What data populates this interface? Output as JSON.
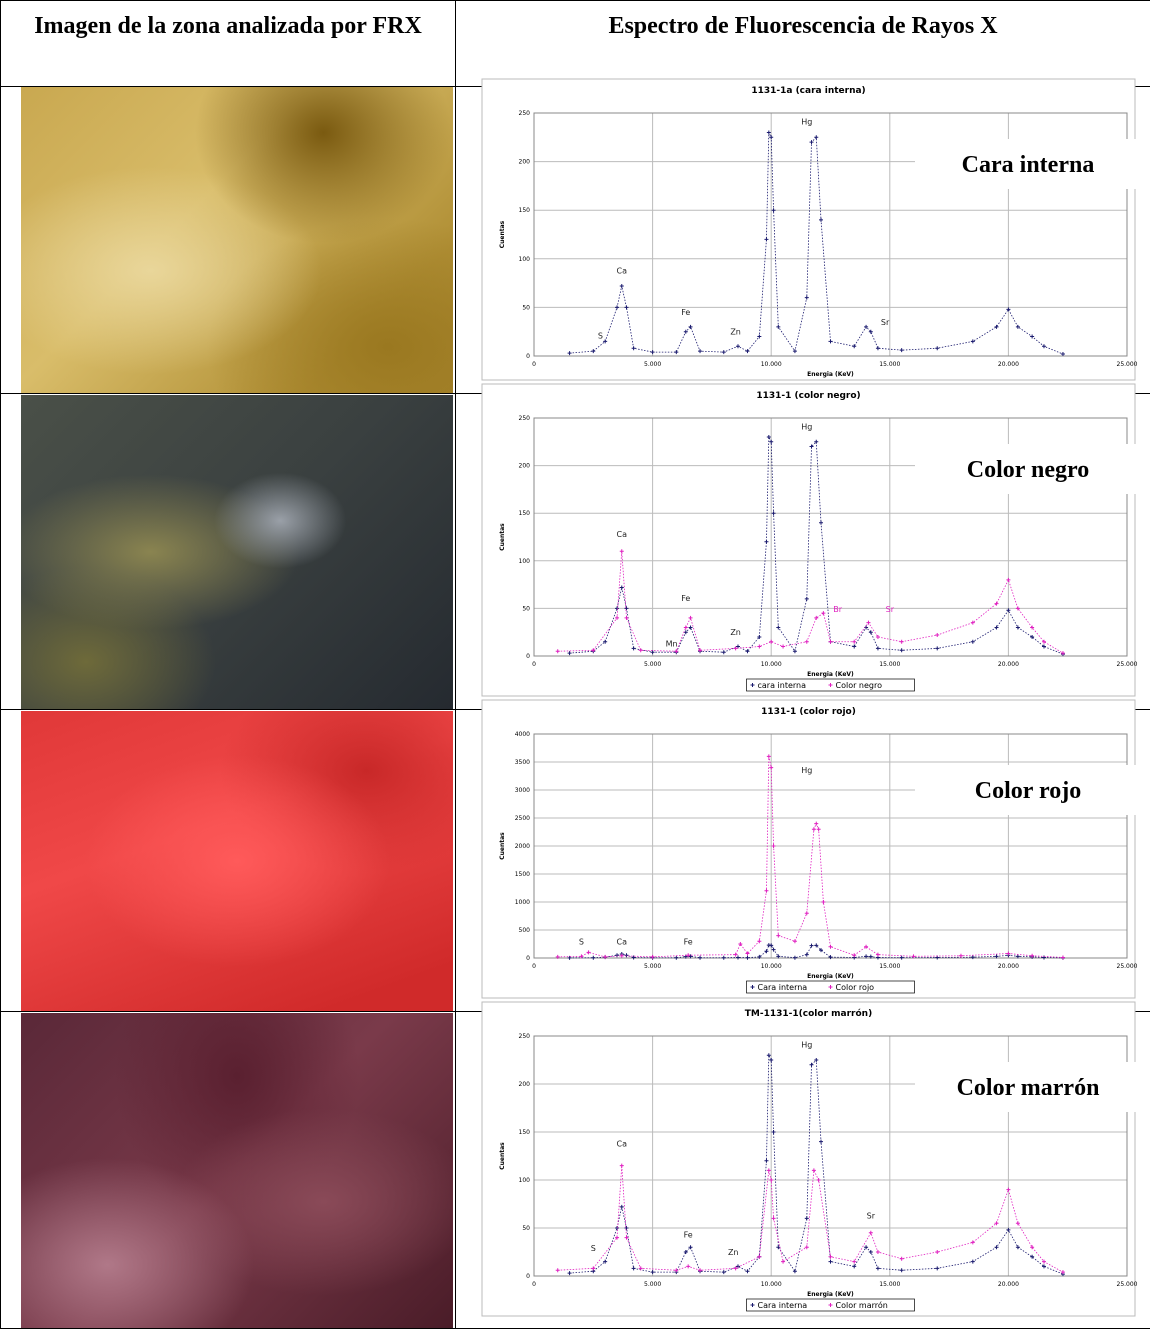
{
  "header": {
    "col1": "Imagen de la zona analizada por FRX",
    "col2": "Espectro de Fluorescencia de Rayos X"
  },
  "rows": [
    {
      "label": "Cara interna",
      "chart": {
        "type": "scatter",
        "title": "1131-1a (cara interna)",
        "x_label": "Energia (KeV)",
        "y_label": "Cuentas",
        "grid": true,
        "legend": false,
        "xlim": [
          0,
          25000
        ],
        "xticks": [
          0,
          {
            "value": 5000,
            "label": "5.000"
          },
          {
            "value": 10000,
            "label": "10.000"
          },
          {
            "value": 15000,
            "label": "15.000"
          },
          {
            "value": 20000,
            "label": "20.000"
          },
          {
            "value": 25000,
            "label": "25.000"
          }
        ],
        "ylim": [
          0,
          250
        ],
        "yticks": [
          0,
          50,
          100,
          150,
          200,
          250
        ],
        "series": [
          {
            "name": "Cara interna",
            "color": "#1a1a6e",
            "x": [
              1500,
              2500,
              3000,
              3500,
              3700,
              3900,
              4200,
              5000,
              6000,
              6400,
              6600,
              7000,
              8000,
              8600,
              9000,
              9500,
              9800,
              9900,
              10000,
              10100,
              10300,
              11000,
              11500,
              11700,
              11900,
              12100,
              12500,
              13500,
              14000,
              14200,
              14500,
              15500,
              17000,
              18500,
              19500,
              20000,
              20400,
              21000,
              21500,
              22300
            ],
            "values": [
              3,
              5,
              15,
              50,
              72,
              50,
              8,
              4,
              4,
              25,
              30,
              5,
              4,
              10,
              5,
              20,
              120,
              230,
              225,
              150,
              30,
              5,
              60,
              220,
              225,
              140,
              15,
              10,
              30,
              25,
              8,
              6,
              8,
              15,
              30,
              48,
              30,
              20,
              10,
              2
            ]
          }
        ],
        "annotations": [
          {
            "text": "S",
            "x": 2800,
            "y": 18,
            "color": "#222"
          },
          {
            "text": "Ca",
            "x": 3700,
            "y": 85,
            "color": "#222"
          },
          {
            "text": "Fe",
            "x": 6400,
            "y": 42,
            "color": "#222"
          },
          {
            "text": "Zn",
            "x": 8500,
            "y": 22,
            "color": "#222"
          },
          {
            "text": "Hg",
            "x": 11500,
            "y": 238,
            "color": "#222"
          },
          {
            "text": "Sr",
            "x": 14800,
            "y": 32,
            "color": "#222"
          }
        ]
      }
    },
    {
      "label": "Color negro",
      "chart": {
        "type": "scatter",
        "title": "1131-1 (color negro)",
        "x_label": "Energia (KeV)",
        "y_label": "Cuentas",
        "grid": true,
        "legend": true,
        "xlim": [
          0,
          25000
        ],
        "xticks": [
          0,
          {
            "value": 5000,
            "label": "5.000"
          },
          {
            "value": 10000,
            "label": "10.000"
          },
          {
            "value": 15000,
            "label": "15.000"
          },
          {
            "value": 20000,
            "label": "20.000"
          },
          {
            "value": 25000,
            "label": "25.000"
          }
        ],
        "ylim": [
          0,
          250
        ],
        "yticks": [
          0,
          50,
          100,
          150,
          200,
          250
        ],
        "series": [
          {
            "name": "cara interna",
            "color": "#1a1a6e",
            "x": [
              1500,
              2500,
              3000,
              3500,
              3700,
              3900,
              4200,
              5000,
              6000,
              6400,
              6600,
              7000,
              8000,
              8600,
              9000,
              9500,
              9800,
              9900,
              10000,
              10100,
              10300,
              11000,
              11500,
              11700,
              11900,
              12100,
              12500,
              13500,
              14000,
              14200,
              14500,
              15500,
              17000,
              18500,
              19500,
              20000,
              20400,
              21000,
              21500,
              22300
            ],
            "values": [
              3,
              5,
              15,
              50,
              72,
              50,
              8,
              4,
              4,
              25,
              30,
              5,
              4,
              10,
              5,
              20,
              120,
              230,
              225,
              150,
              30,
              5,
              60,
              220,
              225,
              140,
              15,
              10,
              30,
              25,
              8,
              6,
              8,
              15,
              30,
              48,
              30,
              20,
              10,
              2
            ]
          },
          {
            "name": "Color negro",
            "color": "#e020c0",
            "x": [
              1000,
              2500,
              3500,
              3700,
              3900,
              4500,
              6000,
              6400,
              6600,
              7000,
              8500,
              9500,
              10000,
              10500,
              11500,
              11900,
              12200,
              12500,
              13500,
              14100,
              14500,
              15500,
              17000,
              18500,
              19500,
              20000,
              20400,
              21000,
              21500,
              22300
            ],
            "values": [
              5,
              6,
              40,
              110,
              40,
              6,
              5,
              30,
              40,
              6,
              8,
              10,
              15,
              10,
              15,
              40,
              45,
              15,
              15,
              35,
              20,
              15,
              22,
              35,
              55,
              80,
              50,
              30,
              15,
              3
            ]
          }
        ],
        "annotations": [
          {
            "text": "Ca",
            "x": 3700,
            "y": 125,
            "color": "#222"
          },
          {
            "text": "Fe",
            "x": 6400,
            "y": 58,
            "color": "#222"
          },
          {
            "text": "Mn",
            "x": 5800,
            "y": 10,
            "color": "#222"
          },
          {
            "text": "Zn",
            "x": 8500,
            "y": 22,
            "color": "#222"
          },
          {
            "text": "Hg",
            "x": 11500,
            "y": 238,
            "color": "#222"
          },
          {
            "text": "Br",
            "x": 12800,
            "y": 46,
            "color": "#e020c0"
          },
          {
            "text": "Sr",
            "x": 15000,
            "y": 46,
            "color": "#e020c0"
          }
        ]
      }
    },
    {
      "label": "Color rojo",
      "chart": {
        "type": "scatter",
        "title": "1131-1 (color rojo)",
        "x_label": "Energia (KeV)",
        "y_label": "Cuentas",
        "grid": true,
        "legend": true,
        "xlim": [
          0,
          25000
        ],
        "xticks": [
          0,
          {
            "value": 5000,
            "label": "5.000"
          },
          {
            "value": 10000,
            "label": "10.000"
          },
          {
            "value": 15000,
            "label": "15.000"
          },
          {
            "value": 20000,
            "label": "20.000"
          },
          {
            "value": 25000,
            "label": "25.000"
          }
        ],
        "ylim": [
          0,
          4000
        ],
        "yticks": [
          0,
          500,
          1000,
          1500,
          2000,
          2500,
          3000,
          3500,
          4000
        ],
        "series": [
          {
            "name": "Cara interna",
            "color": "#1a1a6e",
            "x": [
              1500,
              2500,
              3000,
              3500,
              3700,
              3900,
              4200,
              5000,
              6000,
              6400,
              6600,
              7000,
              8000,
              8600,
              9000,
              9500,
              9800,
              9900,
              10000,
              10100,
              10300,
              11000,
              11500,
              11700,
              11900,
              12100,
              12500,
              13500,
              14000,
              14200,
              14500,
              15500,
              17000,
              18500,
              19500,
              20000,
              20400,
              21000,
              21500,
              22300
            ],
            "values": [
              3,
              5,
              15,
              50,
              72,
              50,
              8,
              4,
              4,
              25,
              30,
              5,
              4,
              10,
              5,
              20,
              120,
              230,
              225,
              150,
              30,
              5,
              60,
              220,
              225,
              140,
              15,
              10,
              30,
              25,
              8,
              6,
              8,
              15,
              30,
              48,
              30,
              20,
              10,
              2
            ]
          },
          {
            "name": "Color rojo",
            "color": "#e020c0",
            "x": [
              1000,
              2000,
              2300,
              3000,
              3700,
              5000,
              6500,
              8500,
              8700,
              9000,
              9500,
              9800,
              9900,
              10000,
              10100,
              10300,
              11000,
              11500,
              11800,
              11900,
              12000,
              12200,
              12500,
              13500,
              14000,
              14500,
              16000,
              18000,
              20000,
              21000,
              22300
            ],
            "values": [
              20,
              30,
              100,
              20,
              40,
              20,
              50,
              60,
              250,
              80,
              300,
              1200,
              3600,
              3400,
              2000,
              400,
              300,
              800,
              2300,
              2400,
              2300,
              1000,
              200,
              50,
              200,
              60,
              30,
              40,
              80,
              40,
              10
            ]
          }
        ],
        "annotations": [
          {
            "text": "S",
            "x": 2000,
            "y": 240,
            "color": "#222"
          },
          {
            "text": "Ca",
            "x": 3700,
            "y": 240,
            "color": "#222"
          },
          {
            "text": "Fe",
            "x": 6500,
            "y": 240,
            "color": "#222"
          },
          {
            "text": "Hg",
            "x": 11500,
            "y": 3300,
            "color": "#222"
          }
        ]
      }
    },
    {
      "label": "Color marrón",
      "chart": {
        "type": "scatter",
        "title": "TM-1131-1(color marrón)",
        "x_label": "Energia (KeV)",
        "y_label": "Cuentas",
        "grid": true,
        "legend": true,
        "xlim": [
          0,
          25000
        ],
        "xticks": [
          0,
          {
            "value": 5000,
            "label": "5.000"
          },
          {
            "value": 10000,
            "label": "10.000"
          },
          {
            "value": 15000,
            "label": "15.000"
          },
          {
            "value": 20000,
            "label": "20.000"
          },
          {
            "value": 25000,
            "label": "25.000"
          }
        ],
        "ylim": [
          0,
          250
        ],
        "yticks": [
          0,
          50,
          100,
          150,
          200,
          250
        ],
        "series": [
          {
            "name": "Cara interna",
            "color": "#1a1a6e",
            "x": [
              1500,
              2500,
              3000,
              3500,
              3700,
              3900,
              4200,
              5000,
              6000,
              6400,
              6600,
              7000,
              8000,
              8600,
              9000,
              9500,
              9800,
              9900,
              10000,
              10100,
              10300,
              11000,
              11500,
              11700,
              11900,
              12100,
              12500,
              13500,
              14000,
              14200,
              14500,
              15500,
              17000,
              18500,
              19500,
              20000,
              20400,
              21000,
              21500,
              22300
            ],
            "values": [
              3,
              5,
              15,
              50,
              72,
              50,
              8,
              4,
              4,
              25,
              30,
              5,
              4,
              10,
              5,
              20,
              120,
              230,
              225,
              150,
              30,
              5,
              60,
              220,
              225,
              140,
              15,
              10,
              30,
              25,
              8,
              6,
              8,
              15,
              30,
              48,
              30,
              20,
              10,
              2
            ]
          },
          {
            "name": "Color marrón",
            "color": "#e020c0",
            "x": [
              1000,
              2500,
              3500,
              3700,
              3900,
              4500,
              6000,
              6500,
              7000,
              8500,
              9500,
              9900,
              10000,
              10100,
              10500,
              11500,
              11800,
              12000,
              12500,
              13500,
              14200,
              14500,
              15500,
              17000,
              18500,
              19500,
              20000,
              20400,
              21000,
              21500,
              22300
            ],
            "values": [
              6,
              8,
              40,
              115,
              40,
              8,
              6,
              10,
              6,
              8,
              20,
              110,
              100,
              60,
              15,
              30,
              110,
              100,
              20,
              15,
              45,
              25,
              18,
              25,
              35,
              55,
              90,
              55,
              30,
              15,
              4
            ]
          }
        ],
        "annotations": [
          {
            "text": "S",
            "x": 2500,
            "y": 26,
            "color": "#222"
          },
          {
            "text": "Ca",
            "x": 3700,
            "y": 135,
            "color": "#222"
          },
          {
            "text": "Fe",
            "x": 6500,
            "y": 40,
            "color": "#222"
          },
          {
            "text": "Zn",
            "x": 8400,
            "y": 22,
            "color": "#222"
          },
          {
            "text": "Hg",
            "x": 11500,
            "y": 238,
            "color": "#222"
          },
          {
            "text": "Sr",
            "x": 14200,
            "y": 60,
            "color": "#222"
          }
        ]
      }
    }
  ]
}
